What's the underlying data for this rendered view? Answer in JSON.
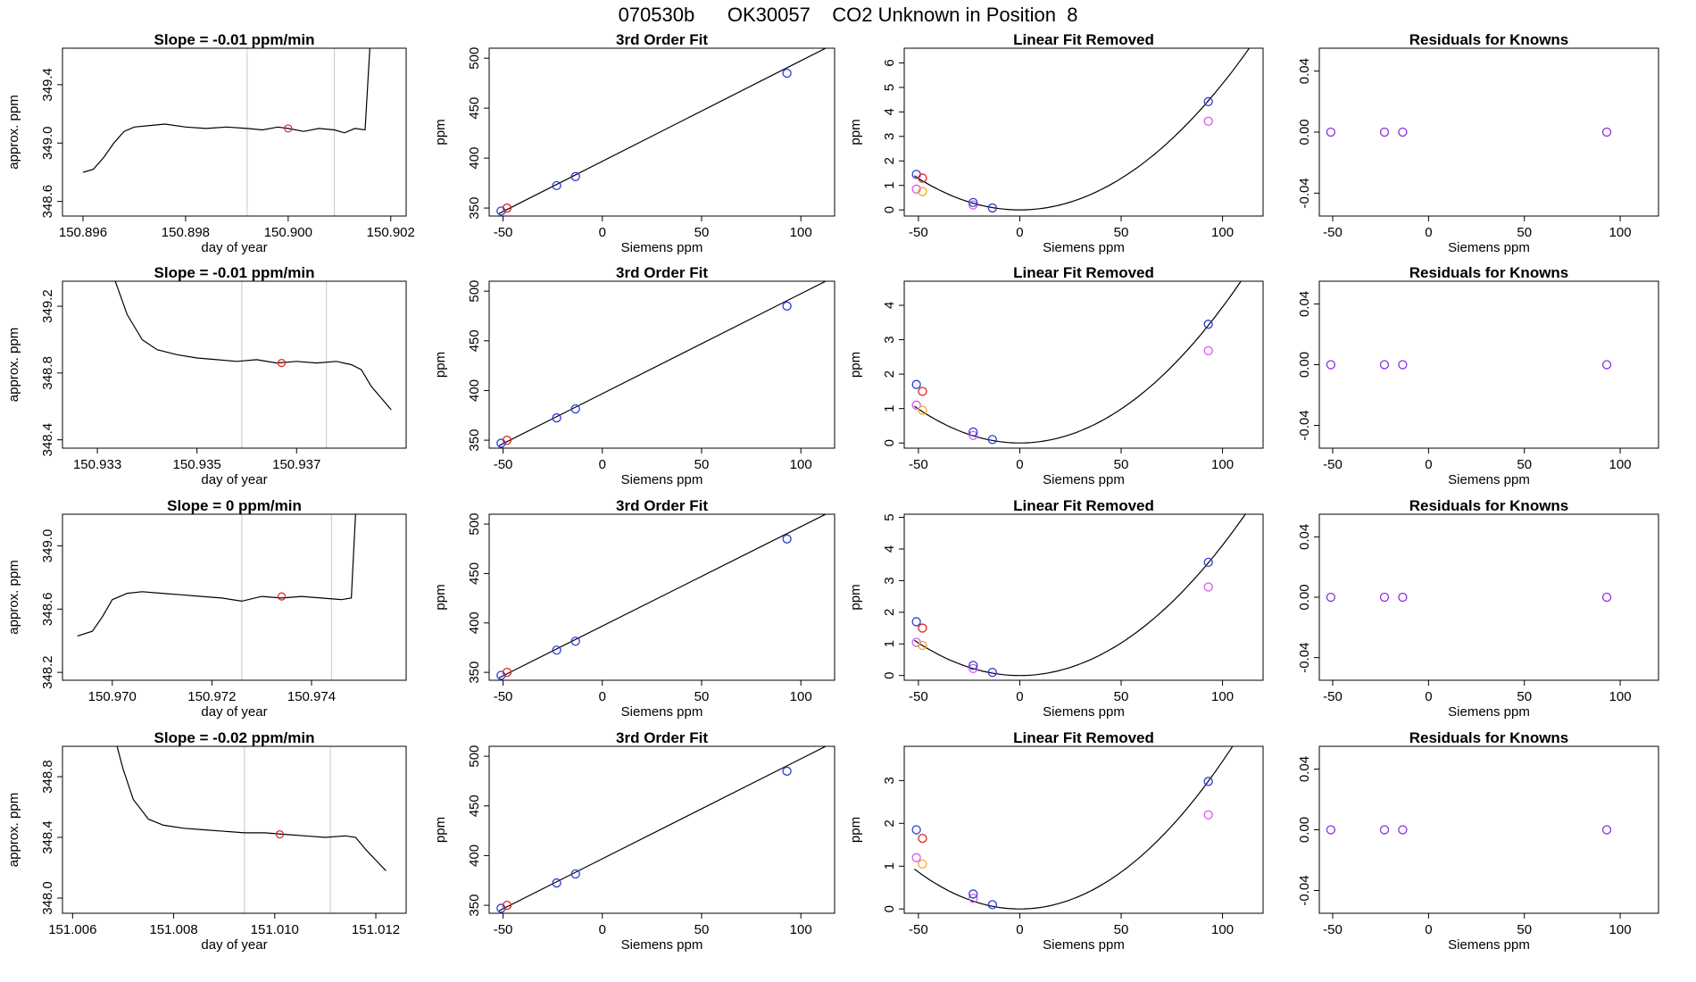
{
  "page": {
    "title": "070530b      OK30057    CO2 Unknown in Position  8"
  },
  "chart_data": [
    {
      "type": "line",
      "title": "Slope =  -0.01  ppm/min",
      "xlabel": "day of year",
      "ylabel": "approx. ppm",
      "xlim": [
        150.8956,
        150.9023
      ],
      "ylim": [
        348.5,
        349.65
      ],
      "xticks": [
        "150.896",
        "150.898",
        "150.900",
        "150.902"
      ],
      "yticks": [
        "348.6",
        "349.0",
        "349.4"
      ],
      "vlines": [
        150.8992,
        150.9009
      ],
      "trace": [
        [
          150.896,
          348.8
        ],
        [
          150.8962,
          348.82
        ],
        [
          150.8964,
          348.9
        ],
        [
          150.8966,
          349.0
        ],
        [
          150.8968,
          349.08
        ],
        [
          150.897,
          349.11
        ],
        [
          150.8973,
          349.12
        ],
        [
          150.8976,
          349.13
        ],
        [
          150.898,
          349.11
        ],
        [
          150.8984,
          349.1
        ],
        [
          150.8988,
          349.11
        ],
        [
          150.8992,
          349.1
        ],
        [
          150.8995,
          349.09
        ],
        [
          150.8998,
          349.11
        ],
        [
          150.9,
          349.1
        ],
        [
          150.9003,
          349.08
        ],
        [
          150.9006,
          349.1
        ],
        [
          150.9009,
          349.09
        ],
        [
          150.9011,
          349.07
        ],
        [
          150.9013,
          349.1
        ],
        [
          150.9015,
          349.09
        ],
        [
          150.9016,
          349.7
        ]
      ],
      "marker": [
        150.9,
        349.1
      ]
    },
    {
      "type": "scatter",
      "title": "3rd Order Fit",
      "xlabel": "Siemens ppm",
      "ylabel": "ppm",
      "xlim": [
        -57,
        117
      ],
      "ylim": [
        342,
        510
      ],
      "xticks": [
        -50,
        0,
        50,
        100
      ],
      "yticks": [
        350,
        400,
        450,
        500
      ],
      "line": [
        [
          -52,
          344.5
        ],
        [
          114,
          511.5
        ]
      ],
      "points_blue": [
        [
          -51,
          347
        ],
        [
          -23,
          372.5
        ],
        [
          -13.5,
          381.5
        ],
        [
          93,
          485
        ]
      ],
      "points_red": [
        [
          -48,
          350
        ]
      ]
    },
    {
      "type": "scatter",
      "title": "Linear Fit Removed",
      "xlabel": "Siemens ppm",
      "ylabel": "ppm",
      "xlim": [
        -57,
        120
      ],
      "ylim": [
        -0.25,
        6.6
      ],
      "xticks": [
        -50,
        0,
        50,
        100
      ],
      "yticks": [
        0,
        1,
        2,
        3,
        4,
        5,
        6
      ],
      "curve_scale": 0.000515,
      "points_blue": [
        [
          -51,
          1.45
        ],
        [
          -23,
          0.3
        ],
        [
          -13.5,
          0.08
        ],
        [
          93,
          4.42
        ]
      ],
      "points_red": [
        [
          -48,
          1.3
        ]
      ],
      "points_magenta": [
        [
          -51,
          0.85
        ],
        [
          -23,
          0.2
        ],
        [
          93,
          3.62
        ]
      ],
      "points_orange": [
        [
          -48,
          0.75
        ]
      ]
    },
    {
      "type": "scatter",
      "title": "Residuals for Knowns",
      "xlabel": "Siemens ppm",
      "ylabel": "",
      "xlim": [
        -57,
        120
      ],
      "ylim": [
        -0.055,
        0.055
      ],
      "xticks": [
        -50,
        0,
        50,
        100
      ],
      "yticks": [
        "-0.04",
        "0.00",
        "0.04"
      ],
      "points_purple": [
        [
          -51,
          0
        ],
        [
          -23,
          0
        ],
        [
          -13.5,
          0
        ],
        [
          93,
          0
        ]
      ]
    },
    {
      "type": "line",
      "title": "Slope =  -0.01  ppm/min",
      "xlabel": "day of year",
      "ylabel": "approx. ppm",
      "xlim": [
        150.9323,
        150.9392
      ],
      "ylim": [
        348.35,
        349.35
      ],
      "xticks": [
        "150.933",
        "150.935",
        "150.937"
      ],
      "yticks": [
        "348.4",
        "348.8",
        "349.2"
      ],
      "vlines": [
        150.9359,
        150.9376
      ],
      "trace": [
        [
          150.9333,
          349.4
        ],
        [
          150.9336,
          349.15
        ],
        [
          150.9339,
          349.0
        ],
        [
          150.9342,
          348.94
        ],
        [
          150.9346,
          348.91
        ],
        [
          150.935,
          348.89
        ],
        [
          150.9354,
          348.88
        ],
        [
          150.9358,
          348.87
        ],
        [
          150.9362,
          348.88
        ],
        [
          150.9366,
          348.86
        ],
        [
          150.937,
          348.87
        ],
        [
          150.9374,
          348.86
        ],
        [
          150.9378,
          348.87
        ],
        [
          150.9381,
          348.85
        ],
        [
          150.9383,
          348.82
        ],
        [
          150.9385,
          348.72
        ],
        [
          150.9387,
          348.65
        ],
        [
          150.9389,
          348.58
        ]
      ],
      "marker": [
        150.9367,
        348.86
      ]
    },
    {
      "type": "scatter",
      "title": "3rd Order Fit",
      "xlabel": "Siemens ppm",
      "ylabel": "ppm",
      "xlim": [
        -57,
        117
      ],
      "ylim": [
        342,
        510
      ],
      "xticks": [
        -50,
        0,
        50,
        100
      ],
      "yticks": [
        350,
        400,
        450,
        500
      ],
      "line": [
        [
          -52,
          344.5
        ],
        [
          114,
          511.5
        ]
      ],
      "points_blue": [
        [
          -51,
          347
        ],
        [
          -23,
          372.5
        ],
        [
          -13.5,
          381.5
        ],
        [
          93,
          485
        ]
      ],
      "points_red": [
        [
          -48,
          350
        ]
      ]
    },
    {
      "type": "scatter",
      "title": "Linear Fit Removed",
      "xlabel": "Siemens ppm",
      "ylabel": "ppm",
      "xlim": [
        -57,
        120
      ],
      "ylim": [
        -0.15,
        4.7
      ],
      "xticks": [
        -50,
        0,
        50,
        100
      ],
      "yticks": [
        0,
        1,
        2,
        3,
        4
      ],
      "curve_scale": 0.000395,
      "points_blue": [
        [
          -51,
          1.7
        ],
        [
          -23,
          0.32
        ],
        [
          -13.5,
          0.1
        ],
        [
          93,
          3.45
        ]
      ],
      "points_red": [
        [
          -48,
          1.5
        ]
      ],
      "points_magenta": [
        [
          -51,
          1.1
        ],
        [
          -23,
          0.22
        ],
        [
          93,
          2.68
        ]
      ],
      "points_orange": [
        [
          -48,
          0.95
        ]
      ]
    },
    {
      "type": "scatter",
      "title": "Residuals for Knowns",
      "xlabel": "Siemens ppm",
      "ylabel": "",
      "xlim": [
        -57,
        120
      ],
      "ylim": [
        -0.055,
        0.055
      ],
      "xticks": [
        -50,
        0,
        50,
        100
      ],
      "yticks": [
        "-0.04",
        "0.00",
        "0.04"
      ],
      "points_purple": [
        [
          -51,
          0
        ],
        [
          -23,
          0
        ],
        [
          -13.5,
          0
        ],
        [
          93,
          0
        ]
      ]
    },
    {
      "type": "line",
      "title": "Slope =  0  ppm/min",
      "xlabel": "day of year",
      "ylabel": "approx. ppm",
      "xlim": [
        150.969,
        150.9759
      ],
      "ylim": [
        348.15,
        349.2
      ],
      "xticks": [
        "150.970",
        "150.972",
        "150.974"
      ],
      "yticks": [
        "348.2",
        "348.6",
        "349.0"
      ],
      "vlines": [
        150.9726,
        150.9744
      ],
      "trace": [
        [
          150.9693,
          348.43
        ],
        [
          150.9696,
          348.46
        ],
        [
          150.9698,
          348.55
        ],
        [
          150.97,
          348.66
        ],
        [
          150.9703,
          348.7
        ],
        [
          150.9706,
          348.71
        ],
        [
          150.971,
          348.7
        ],
        [
          150.9714,
          348.69
        ],
        [
          150.9718,
          348.68
        ],
        [
          150.9722,
          348.67
        ],
        [
          150.9726,
          348.65
        ],
        [
          150.973,
          348.68
        ],
        [
          150.9734,
          348.67
        ],
        [
          150.9738,
          348.68
        ],
        [
          150.9742,
          348.67
        ],
        [
          150.9746,
          348.66
        ],
        [
          150.9748,
          348.67
        ],
        [
          150.9749,
          349.3
        ]
      ],
      "marker": [
        150.9734,
        348.68
      ]
    },
    {
      "type": "scatter",
      "title": "3rd Order Fit",
      "xlabel": "Siemens ppm",
      "ylabel": "ppm",
      "xlim": [
        -57,
        117
      ],
      "ylim": [
        342,
        510
      ],
      "xticks": [
        -50,
        0,
        50,
        100
      ],
      "yticks": [
        350,
        400,
        450,
        500
      ],
      "line": [
        [
          -52,
          344.5
        ],
        [
          114,
          511.5
        ]
      ],
      "points_blue": [
        [
          -51,
          347
        ],
        [
          -23,
          372.5
        ],
        [
          -13.5,
          381.5
        ],
        [
          93,
          485
        ]
      ],
      "points_red": [
        [
          -48,
          350
        ]
      ]
    },
    {
      "type": "scatter",
      "title": "Linear Fit Removed",
      "xlabel": "Siemens ppm",
      "ylabel": "ppm",
      "xlim": [
        -57,
        120
      ],
      "ylim": [
        -0.15,
        5.1
      ],
      "xticks": [
        -50,
        0,
        50,
        100
      ],
      "yticks": [
        0,
        1,
        2,
        3,
        4,
        5
      ],
      "curve_scale": 0.000412,
      "points_blue": [
        [
          -51,
          1.7
        ],
        [
          -23,
          0.32
        ],
        [
          -13.5,
          0.1
        ],
        [
          93,
          3.58
        ]
      ],
      "points_red": [
        [
          -48,
          1.5
        ]
      ],
      "points_magenta": [
        [
          -51,
          1.05
        ],
        [
          -23,
          0.22
        ],
        [
          93,
          2.8
        ]
      ],
      "points_orange": [
        [
          -48,
          0.95
        ]
      ]
    },
    {
      "type": "scatter",
      "title": "Residuals for Knowns",
      "xlabel": "Siemens ppm",
      "ylabel": "",
      "xlim": [
        -57,
        120
      ],
      "ylim": [
        -0.055,
        0.055
      ],
      "xticks": [
        -50,
        0,
        50,
        100
      ],
      "yticks": [
        "-0.04",
        "0.00",
        "0.04"
      ],
      "points_purple": [
        [
          -51,
          0
        ],
        [
          -23,
          0
        ],
        [
          -13.5,
          0
        ],
        [
          93,
          0
        ]
      ]
    },
    {
      "type": "line",
      "title": "Slope =  -0.02  ppm/min",
      "xlabel": "day of year",
      "ylabel": "approx. ppm",
      "xlim": [
        151.0058,
        151.0126
      ],
      "ylim": [
        347.9,
        349.0
      ],
      "xticks": [
        "151.006",
        "151.008",
        "151.010",
        "151.012"
      ],
      "yticks": [
        "348.0",
        "348.4",
        "348.8"
      ],
      "vlines": [
        151.0094,
        151.0111
      ],
      "trace": [
        [
          151.0068,
          349.1
        ],
        [
          151.007,
          348.85
        ],
        [
          151.0072,
          348.65
        ],
        [
          151.0075,
          348.52
        ],
        [
          151.0078,
          348.48
        ],
        [
          151.0082,
          348.46
        ],
        [
          151.0086,
          348.45
        ],
        [
          151.009,
          348.44
        ],
        [
          151.0094,
          348.43
        ],
        [
          151.0098,
          348.43
        ],
        [
          151.0102,
          348.42
        ],
        [
          151.0106,
          348.41
        ],
        [
          151.011,
          348.4
        ],
        [
          151.0114,
          348.41
        ],
        [
          151.0116,
          348.4
        ],
        [
          151.0118,
          348.32
        ],
        [
          151.012,
          348.25
        ],
        [
          151.0122,
          348.18
        ]
      ],
      "marker": [
        151.0101,
        348.42
      ]
    },
    {
      "type": "scatter",
      "title": "3rd Order Fit",
      "xlabel": "Siemens ppm",
      "ylabel": "ppm",
      "xlim": [
        -57,
        117
      ],
      "ylim": [
        342,
        510
      ],
      "xticks": [
        -50,
        0,
        50,
        100
      ],
      "yticks": [
        350,
        400,
        450,
        500
      ],
      "line": [
        [
          -52,
          344.5
        ],
        [
          114,
          511.5
        ]
      ],
      "points_blue": [
        [
          -51,
          347
        ],
        [
          -23,
          372.5
        ],
        [
          -13.5,
          381.5
        ],
        [
          93,
          485
        ]
      ],
      "points_red": [
        [
          -48,
          350
        ]
      ]
    },
    {
      "type": "scatter",
      "title": "Linear Fit Removed",
      "xlabel": "Siemens ppm",
      "ylabel": "ppm",
      "xlim": [
        -57,
        120
      ],
      "ylim": [
        -0.1,
        3.8
      ],
      "xticks": [
        -50,
        0,
        50,
        100
      ],
      "yticks": [
        0,
        1,
        2,
        3
      ],
      "curve_scale": 0.000345,
      "points_blue": [
        [
          -51,
          1.85
        ],
        [
          -23,
          0.35
        ],
        [
          -13.5,
          0.1
        ],
        [
          93,
          2.98
        ]
      ],
      "points_red": [
        [
          -48,
          1.65
        ]
      ],
      "points_magenta": [
        [
          -51,
          1.2
        ],
        [
          -23,
          0.25
        ],
        [
          93,
          2.2
        ]
      ],
      "points_orange": [
        [
          -48,
          1.05
        ]
      ]
    },
    {
      "type": "scatter",
      "title": "Residuals for Knowns",
      "xlabel": "Siemens ppm",
      "ylabel": "",
      "xlim": [
        -57,
        120
      ],
      "ylim": [
        -0.055,
        0.055
      ],
      "xticks": [
        -50,
        0,
        50,
        100
      ],
      "yticks": [
        "-0.04",
        "0.00",
        "0.04"
      ],
      "points_purple": [
        [
          -51,
          0
        ],
        [
          -23,
          0
        ],
        [
          -13.5,
          0
        ],
        [
          93,
          0
        ]
      ]
    }
  ],
  "colors": {
    "blue": "#2b3bd6",
    "red": "#e02020",
    "magenta": "#d458e8",
    "orange": "#f5a623",
    "purple": "#8a2be2",
    "vline": "#c8c8c8",
    "ink": "#000000"
  }
}
